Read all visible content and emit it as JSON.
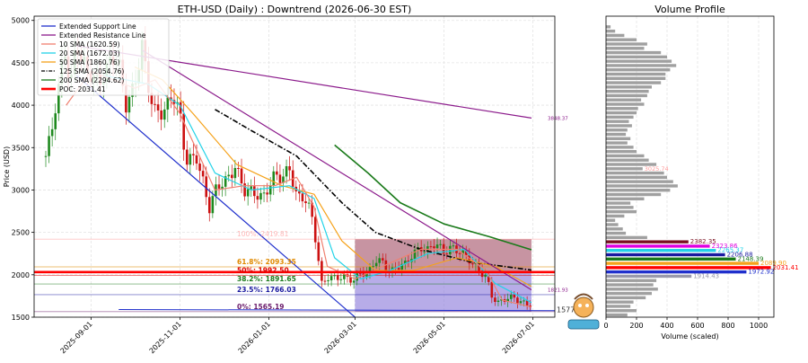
{
  "chart_data": [
    {
      "type": "candlestick",
      "title": "ETH-USD (Daily) : Downtrend (2026-06-30 EST)",
      "ylabel": "Price (USD)",
      "xlabel": "",
      "ylim": [
        1500,
        5050
      ],
      "x_range": [
        "2025-07-24",
        "2026-07-16"
      ],
      "x_ticks": [
        "2025-09-01",
        "2025-11-01",
        "2026-01-01",
        "2026-03-01",
        "2026-05-01",
        "2026-07-01"
      ],
      "y_ticks": [
        1500,
        2000,
        2500,
        3000,
        3500,
        4000,
        4500,
        5000
      ],
      "grid": true,
      "legend_position": "top-left",
      "legend": [
        {
          "label": "Extended Support Line",
          "color": "#1f2fcc",
          "style": "solid"
        },
        {
          "label": "Extended Resistance Line",
          "color": "#8b1a8b",
          "style": "solid"
        },
        {
          "label": "10 SMA (1620.59)",
          "color": "#f08070",
          "style": "solid"
        },
        {
          "label": "20 SMA (1672.03)",
          "color": "#22d3e8",
          "style": "solid"
        },
        {
          "label": "50 SMA (1860.76)",
          "color": "#f5a21b",
          "style": "solid"
        },
        {
          "label": "125 SMA (2054.76)",
          "color": "#000000",
          "style": "dashdot"
        },
        {
          "label": "200 SMA (2294.62)",
          "color": "#1a7a1a",
          "style": "solid"
        },
        {
          "label": "POC: 2031.41",
          "color": "#ff0000",
          "style": "thick"
        }
      ],
      "price_path": [
        [
          "2025-08-01",
          3400
        ],
        [
          "2025-08-05",
          3650
        ],
        [
          "2025-08-10",
          4200
        ],
        [
          "2025-08-14",
          4700
        ],
        [
          "2025-08-18",
          4250
        ],
        [
          "2025-08-22",
          4800
        ],
        [
          "2025-08-25",
          4500
        ],
        [
          "2025-08-30",
          4350
        ],
        [
          "2025-09-05",
          4300
        ],
        [
          "2025-09-10",
          4400
        ],
        [
          "2025-09-15",
          4550
        ],
        [
          "2025-09-20",
          4450
        ],
        [
          "2025-09-25",
          4000
        ],
        [
          "2025-10-01",
          4300
        ],
        [
          "2025-10-06",
          4700
        ],
        [
          "2025-10-10",
          4200
        ],
        [
          "2025-10-14",
          3900
        ],
        [
          "2025-10-20",
          3950
        ],
        [
          "2025-10-27",
          4150
        ],
        [
          "2025-11-01",
          3850
        ],
        [
          "2025-11-05",
          3300
        ],
        [
          "2025-11-12",
          3450
        ],
        [
          "2025-11-17",
          3100
        ],
        [
          "2025-11-21",
          2750
        ],
        [
          "2025-11-26",
          3000
        ],
        [
          "2025-12-03",
          3150
        ],
        [
          "2025-12-09",
          3300
        ],
        [
          "2025-12-15",
          2950
        ],
        [
          "2025-12-20",
          2970
        ],
        [
          "2025-12-28",
          2950
        ],
        [
          "2026-01-05",
          3150
        ],
        [
          "2026-01-10",
          3100
        ],
        [
          "2026-01-15",
          3300
        ],
        [
          "2026-01-20",
          2950
        ],
        [
          "2026-01-25",
          2900
        ],
        [
          "2026-01-30",
          2700
        ],
        [
          "2026-02-03",
          2300
        ],
        [
          "2026-02-06",
          1900
        ],
        [
          "2026-02-10",
          2000
        ],
        [
          "2026-02-16",
          1950
        ],
        [
          "2026-02-22",
          1950
        ],
        [
          "2026-02-28",
          1950
        ],
        [
          "2026-03-05",
          2050
        ],
        [
          "2026-03-10",
          2000
        ],
        [
          "2026-03-15",
          2150
        ],
        [
          "2026-03-20",
          2150
        ],
        [
          "2026-03-25",
          2050
        ],
        [
          "2026-03-30",
          2100
        ],
        [
          "2026-04-05",
          2100
        ],
        [
          "2026-04-10",
          2250
        ],
        [
          "2026-04-15",
          2350
        ],
        [
          "2026-04-20",
          2300
        ],
        [
          "2026-04-25",
          2350
        ],
        [
          "2026-05-01",
          2250
        ],
        [
          "2026-05-06",
          2350
        ],
        [
          "2026-05-11",
          2300
        ],
        [
          "2026-05-16",
          2200
        ],
        [
          "2026-05-21",
          2100
        ],
        [
          "2026-05-26",
          2050
        ],
        [
          "2026-05-30",
          2000
        ],
        [
          "2026-06-03",
          1750
        ],
        [
          "2026-06-07",
          1650
        ],
        [
          "2026-06-12",
          1700
        ],
        [
          "2026-06-18",
          1750
        ],
        [
          "2026-06-24",
          1680
        ],
        [
          "2026-06-30",
          1620
        ]
      ],
      "sma10_path": [
        [
          "2025-08-15",
          4000
        ],
        [
          "2025-09-01",
          4400
        ],
        [
          "2025-10-01",
          4200
        ],
        [
          "2025-10-15",
          4300
        ],
        [
          "2025-11-01",
          3900
        ],
        [
          "2025-11-25",
          3000
        ],
        [
          "2025-12-15",
          3050
        ],
        [
          "2026-01-05",
          3050
        ],
        [
          "2026-01-20",
          3150
        ],
        [
          "2026-02-01",
          2800
        ],
        [
          "2026-02-10",
          2100
        ],
        [
          "2026-03-01",
          1950
        ],
        [
          "2026-03-20",
          2100
        ],
        [
          "2026-04-15",
          2300
        ],
        [
          "2026-05-10",
          2300
        ],
        [
          "2026-05-30",
          2050
        ],
        [
          "2026-06-10",
          1700
        ],
        [
          "2026-06-30",
          1620
        ]
      ],
      "sma20_path": [
        [
          "2025-09-10",
          4350
        ],
        [
          "2025-10-10",
          4250
        ],
        [
          "2025-11-01",
          4000
        ],
        [
          "2025-11-25",
          3200
        ],
        [
          "2025-12-20",
          3000
        ],
        [
          "2026-01-15",
          3050
        ],
        [
          "2026-02-01",
          2900
        ],
        [
          "2026-02-15",
          2200
        ],
        [
          "2026-03-05",
          1950
        ],
        [
          "2026-03-25",
          2050
        ],
        [
          "2026-04-20",
          2250
        ],
        [
          "2026-05-15",
          2300
        ],
        [
          "2026-06-05",
          1900
        ],
        [
          "2026-06-30",
          1672
        ]
      ],
      "sma50_path": [
        [
          "2025-10-01",
          4450
        ],
        [
          "2025-10-20",
          4300
        ],
        [
          "2025-11-10",
          3900
        ],
        [
          "2025-12-10",
          3300
        ],
        [
          "2026-01-10",
          3050
        ],
        [
          "2026-02-01",
          2950
        ],
        [
          "2026-02-20",
          2400
        ],
        [
          "2026-03-15",
          2050
        ],
        [
          "2026-04-10",
          2050
        ],
        [
          "2026-05-10",
          2200
        ],
        [
          "2026-06-05",
          2100
        ],
        [
          "2026-06-30",
          1861
        ]
      ],
      "sma125_path": [
        [
          "2025-11-25",
          3950
        ],
        [
          "2025-12-20",
          3700
        ],
        [
          "2026-01-20",
          3400
        ],
        [
          "2026-02-20",
          2850
        ],
        [
          "2026-03-15",
          2500
        ],
        [
          "2026-04-15",
          2300
        ],
        [
          "2026-05-20",
          2150
        ],
        [
          "2026-06-30",
          2055
        ]
      ],
      "sma200_path": [
        [
          "2026-02-15",
          3530
        ],
        [
          "2026-03-10",
          3200
        ],
        [
          "2026-04-01",
          2850
        ],
        [
          "2026-05-01",
          2600
        ],
        [
          "2026-06-01",
          2450
        ],
        [
          "2026-06-30",
          2295
        ]
      ],
      "support_line": [
        [
          "2025-08-22",
          4350
        ],
        [
          "2026-03-01",
          1500
        ]
      ],
      "resistance_lines": [
        [
          [
            "2025-08-22",
            4700
          ],
          [
            "2026-06-30",
            3848.37
          ]
        ],
        [
          [
            "2025-10-06",
            4650
          ],
          [
            "2026-06-30",
            1821.93
          ]
        ]
      ],
      "poc": 2031.41,
      "fib_levels": [
        {
          "label": "100%: 2419.81",
          "value": 2419.81,
          "color": "#ff9999"
        },
        {
          "label": "61.8%: 2093.35",
          "value": 2093.35,
          "color": "#e08a00"
        },
        {
          "label": "50%: 1992.50",
          "value": 1992.5,
          "color": "#dd0000"
        },
        {
          "label": "38.2%: 1891.65",
          "value": 1891.65,
          "color": "#1a7a1a"
        },
        {
          "label": "23.5%: 1766.03",
          "value": 1766.03,
          "color": "#1a1aa0"
        },
        {
          "label": "0%: 1565.19",
          "value": 1565.19,
          "color": "#6a1a6a"
        }
      ],
      "range_box": {
        "start": "2026-03-01",
        "end": "2026-06-30",
        "high": 2419.81,
        "low": 1565.19
      },
      "line_end_labels": [
        {
          "text": "3848.37",
          "value": 3848.37
        },
        {
          "text": "1821.93",
          "value": 1821.93
        },
        {
          "text": "1577.15",
          "value": 1577.15
        }
      ]
    },
    {
      "type": "bar",
      "orientation": "horizontal",
      "title": "Volume Profile",
      "xlabel": "Volume (scaled)",
      "xlim": [
        0,
        1100
      ],
      "x_ticks": [
        0,
        200,
        400,
        600,
        800,
        1000
      ],
      "values_top_to_bottom": [
        {
          "price": 5000,
          "v": 0
        },
        {
          "price": 4950,
          "v": 0
        },
        {
          "price": 4900,
          "v": 30
        },
        {
          "price": 4850,
          "v": 60
        },
        {
          "price": 4800,
          "v": 120
        },
        {
          "price": 4750,
          "v": 200
        },
        {
          "price": 4700,
          "v": 270
        },
        {
          "price": 4650,
          "v": 250
        },
        {
          "price": 4600,
          "v": 360
        },
        {
          "price": 4550,
          "v": 400
        },
        {
          "price": 4500,
          "v": 430
        },
        {
          "price": 4450,
          "v": 460
        },
        {
          "price": 4400,
          "v": 420
        },
        {
          "price": 4350,
          "v": 390
        },
        {
          "price": 4300,
          "v": 390
        },
        {
          "price": 4250,
          "v": 360
        },
        {
          "price": 4200,
          "v": 300
        },
        {
          "price": 4150,
          "v": 280
        },
        {
          "price": 4100,
          "v": 270
        },
        {
          "price": 4050,
          "v": 230
        },
        {
          "price": 4000,
          "v": 250
        },
        {
          "price": 3950,
          "v": 210
        },
        {
          "price": 3900,
          "v": 200
        },
        {
          "price": 3850,
          "v": 180
        },
        {
          "price": 3800,
          "v": 150
        },
        {
          "price": 3750,
          "v": 170
        },
        {
          "price": 3700,
          "v": 140
        },
        {
          "price": 3650,
          "v": 130
        },
        {
          "price": 3600,
          "v": 160
        },
        {
          "price": 3550,
          "v": 140
        },
        {
          "price": 3500,
          "v": 180
        },
        {
          "price": 3450,
          "v": 200
        },
        {
          "price": 3400,
          "v": 250
        },
        {
          "price": 3350,
          "v": 280
        },
        {
          "price": 3300,
          "v": 330
        },
        {
          "price": 3250,
          "v": 240
        },
        {
          "price": 3200,
          "v": 380
        },
        {
          "price": 3150,
          "v": 400
        },
        {
          "price": 3100,
          "v": 440
        },
        {
          "price": 3050,
          "v": 470
        },
        {
          "price": 3000,
          "v": 420
        },
        {
          "price": 2950,
          "v": 360
        },
        {
          "price": 2900,
          "v": 250
        },
        {
          "price": 2850,
          "v": 160
        },
        {
          "price": 2800,
          "v": 180
        },
        {
          "price": 2750,
          "v": 200
        },
        {
          "price": 2700,
          "v": 120
        },
        {
          "price": 2650,
          "v": 60
        },
        {
          "price": 2600,
          "v": 80
        },
        {
          "price": 2550,
          "v": 110
        },
        {
          "price": 2500,
          "v": 130
        },
        {
          "price": 2450,
          "v": 270
        },
        {
          "price": 2400,
          "v": 540,
          "label": "2382.35",
          "color": "#7a1020"
        },
        {
          "price": 2350,
          "v": 680,
          "label": "2323.86",
          "color": "#e000e0"
        },
        {
          "price": 2300,
          "v": 720,
          "label": "2265.37",
          "color": "#22d3e8"
        },
        {
          "price": 2250,
          "v": 780,
          "label": "2206.88",
          "color": "#1a1aa0"
        },
        {
          "price": 2200,
          "v": 850,
          "label": "2148.39",
          "color": "#1a7a1a"
        },
        {
          "price": 2150,
          "v": 1000,
          "label": "2089.90",
          "color": "#f5a21b"
        },
        {
          "price": 2100,
          "v": 1080,
          "label": "2031.41",
          "color": "#ff0000"
        },
        {
          "price": 2050,
          "v": 920,
          "label": "1972.92",
          "color": "#1f2fcc"
        },
        {
          "price": 2000,
          "v": 560,
          "label": "1914.43",
          "color": "#9999aa"
        },
        {
          "price": 1950,
          "v": 330
        },
        {
          "price": 1900,
          "v": 310
        },
        {
          "price": 1850,
          "v": 340
        },
        {
          "price": 1800,
          "v": 300
        },
        {
          "price": 1750,
          "v": 260
        },
        {
          "price": 1700,
          "v": 180
        },
        {
          "price": 1650,
          "v": 160
        },
        {
          "price": 1600,
          "v": 200
        },
        {
          "price": 1550,
          "v": 140
        }
      ],
      "high_label": {
        "text": "3025.74",
        "color": "#ff9999"
      }
    }
  ]
}
